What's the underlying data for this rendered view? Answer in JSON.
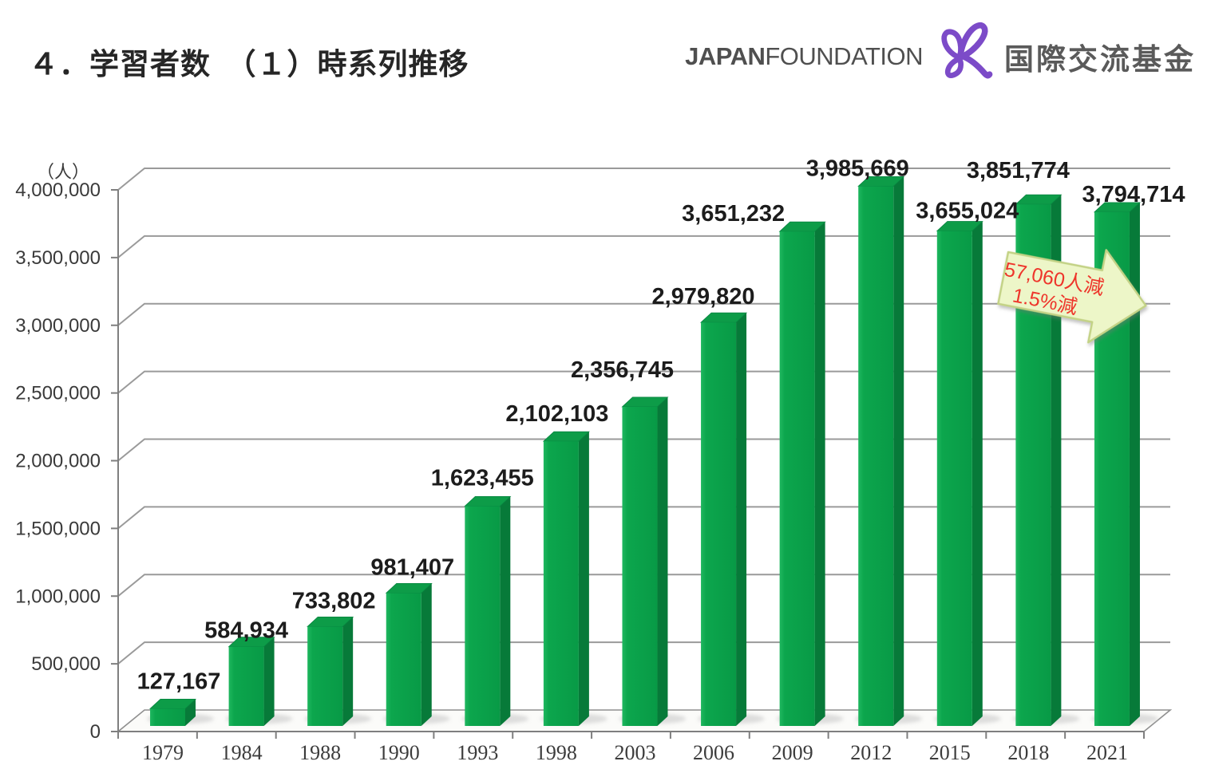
{
  "header": {
    "title": "４．学習者数　（１）時系列推移"
  },
  "logo": {
    "japan": "JAPAN",
    "foundation": "FOUNDATION",
    "kanji": "国際交流基金",
    "mark_color": "#7c4bc8",
    "text_color": "#4f4f4f"
  },
  "chart_data": {
    "type": "bar",
    "style": "3d",
    "title": "",
    "unit_label": "（人）",
    "categories": [
      "1979",
      "1984",
      "1988",
      "1990",
      "1993",
      "1998",
      "2003",
      "2006",
      "2009",
      "2012",
      "2015",
      "2018",
      "2021"
    ],
    "values": [
      127167,
      584934,
      733802,
      981407,
      1623455,
      2102103,
      2356745,
      2979820,
      3651232,
      3985669,
      3655024,
      3851774,
      3794714
    ],
    "value_labels": [
      "127,167",
      "584,934",
      "733,802",
      "981,407",
      "1,623,455",
      "2,102,103",
      "2,356,745",
      "2,979,820",
      "3,651,232",
      "3,985,669",
      "3,655,024",
      "3,851,774",
      "3,794,714"
    ],
    "ylim": [
      0,
      4000000
    ],
    "ytick_interval": 500000,
    "ytick_labels": [
      "0",
      "500,000",
      "1,000,000",
      "1,500,000",
      "2,000,000",
      "2,500,000",
      "3,000,000",
      "3,500,000",
      "4,000,000"
    ],
    "grid": true,
    "legend": false,
    "colors": {
      "bar_front": "#0ba24b",
      "bar_side": "#077a39",
      "bar_top": "#0d9c48",
      "gridline": "#9a9a9a",
      "axis": "#7f7f7f",
      "value_label": "#1c1c1c",
      "tick_label": "#3a3a3a"
    },
    "annotation": {
      "line1": "57,060人減",
      "line2": "1.5%減",
      "text_color": "#ee352b",
      "fill": "#edf6c8",
      "border": "#c3d285"
    }
  }
}
